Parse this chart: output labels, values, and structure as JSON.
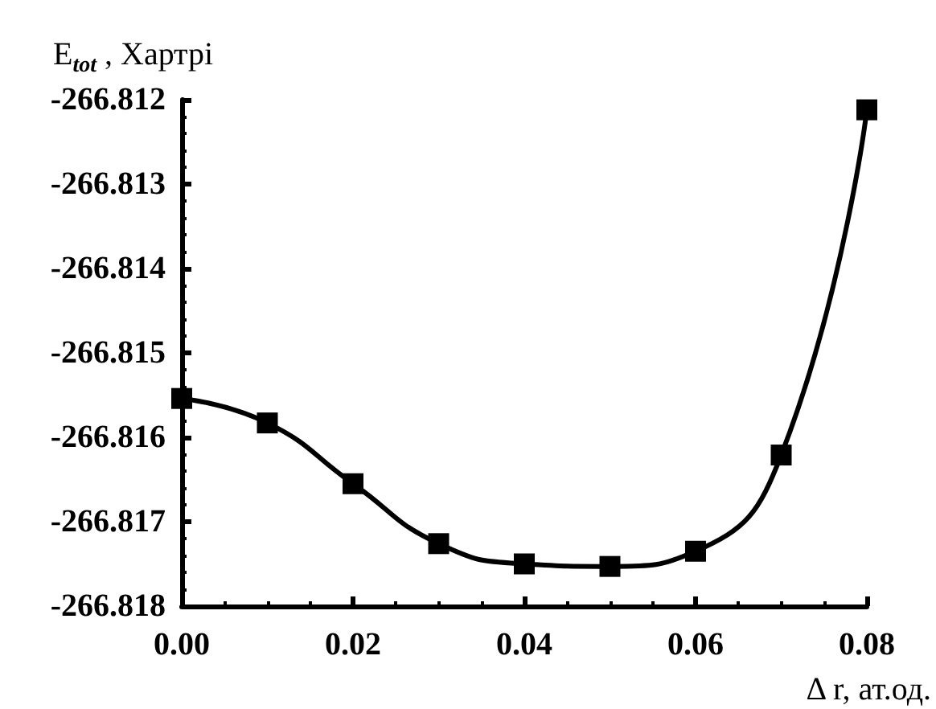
{
  "chart_data": {
    "type": "line",
    "xlabel": "Δ r, ат.од.",
    "ylabel": "E$_{tot}$ , Хартрі",
    "x": [
      0,
      0.01,
      0.02,
      0.03,
      0.04,
      0.05,
      0.06,
      0.07,
      0.08
    ],
    "series": [
      {
        "color": "#000000",
        "values": [
          -266.81554,
          -266.81583,
          -266.81655,
          -266.81726,
          -266.8175,
          -266.81753,
          -266.81735,
          -266.81621,
          -266.81212
        ]
      }
    ],
    "xlim": [
      0,
      0.08
    ],
    "xticks": [
      {
        "value": 0,
        "label": "0.00"
      },
      {
        "value": 0.02,
        "label": "0.02"
      },
      {
        "value": 0.04,
        "label": "0.04"
      },
      {
        "value": 0.06,
        "label": "0.06"
      },
      {
        "value": 0.08,
        "label": "0.08"
      }
    ],
    "ylim": [
      -266.818,
      -266.812
    ],
    "yticks": [
      -266.818,
      -266.817,
      -266.816,
      -266.815,
      -266.814,
      -266.813,
      -266.812
    ],
    "marker": "square",
    "line_style": "solid"
  }
}
